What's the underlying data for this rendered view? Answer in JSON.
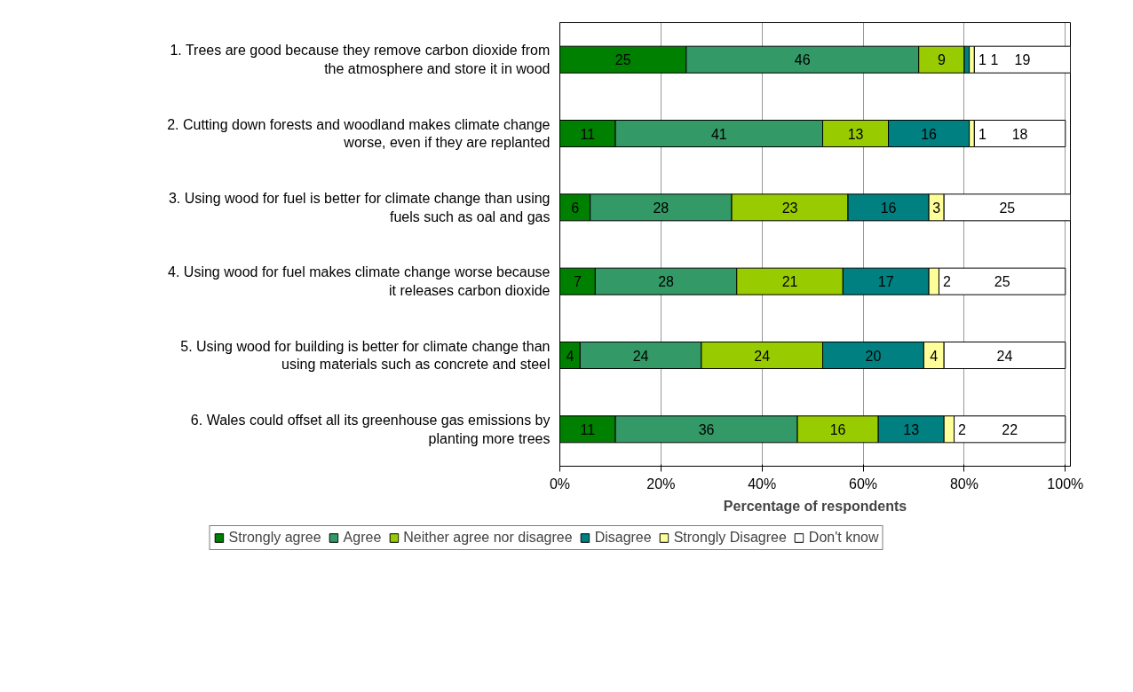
{
  "chart_data": {
    "type": "bar",
    "orientation": "horizontal",
    "stacked": true,
    "categories": [
      "1. Trees are good because they remove carbon dioxide from\nthe atmosphere and store it in wood",
      "2. Cutting down forests and woodland makes climate change\nworse, even if they are replanted",
      "3. Using wood for fuel is better for climate change than using\nfuels such as oal and gas",
      "4. Using wood for fuel makes climate change worse because\nit releases carbon dioxide",
      "5. Using wood for building is better for climate change than\nusing materials such as concrete and steel",
      "6. Wales could offset all its greenhouse gas emissions by\nplanting more trees"
    ],
    "series": [
      {
        "name": "Strongly agree",
        "color": "#008000",
        "values": [
          25,
          11,
          6,
          7,
          4,
          11
        ]
      },
      {
        "name": "Agree",
        "color": "#339966",
        "values": [
          46,
          41,
          28,
          28,
          24,
          36
        ]
      },
      {
        "name": "Neither agree nor disagree",
        "color": "#99cc00",
        "values": [
          9,
          13,
          23,
          21,
          24,
          16
        ]
      },
      {
        "name": "Disagree",
        "color": "#008080",
        "values": [
          1,
          16,
          16,
          17,
          20,
          13
        ]
      },
      {
        "name": "Strongly Disagree",
        "color": "#ffff99",
        "values": [
          1,
          1,
          3,
          2,
          4,
          2
        ]
      },
      {
        "name": "Don't know",
        "color": "#ffffff",
        "values": [
          19,
          18,
          25,
          25,
          24,
          22
        ]
      }
    ],
    "xlim": [
      0,
      101
    ],
    "xticks": [
      {
        "value": 0,
        "label": "0%"
      },
      {
        "value": 20,
        "label": "20%"
      },
      {
        "value": 40,
        "label": "40%"
      },
      {
        "value": 60,
        "label": "60%"
      },
      {
        "value": 80,
        "label": "80%"
      },
      {
        "value": 100,
        "label": "100%"
      }
    ],
    "xlabel": "Percentage of respondents",
    "grid": "x",
    "legend": "bottom",
    "data_labels": true
  }
}
